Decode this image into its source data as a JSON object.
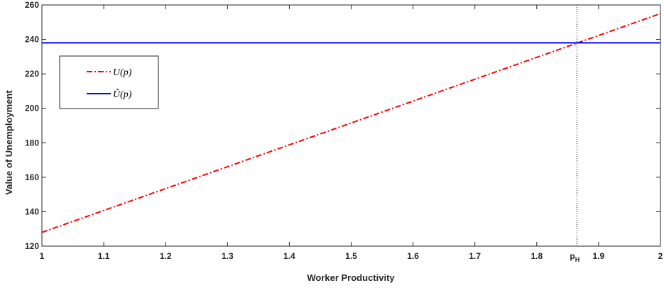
{
  "chart_data": {
    "type": "line",
    "xlabel": "Worker Productivity",
    "ylabel": "Value of Unemployment",
    "xlim": [
      1,
      2
    ],
    "ylim": [
      120,
      260
    ],
    "xticks": [
      1,
      1.1,
      1.2,
      1.3,
      1.4,
      1.5,
      1.6,
      1.7,
      1.8,
      1.9,
      2
    ],
    "xtick_labels": [
      "1",
      "1.1",
      "1.2",
      "1.3",
      "1.4",
      "1.5",
      "1.6",
      "1.7",
      "1.8",
      "1.9",
      "2"
    ],
    "yticks": [
      120,
      140,
      160,
      180,
      200,
      220,
      240,
      260
    ],
    "ytick_labels": [
      "120",
      "140",
      "160",
      "180",
      "200",
      "220",
      "240",
      "260"
    ],
    "grid": false,
    "legend_position": "upper-left",
    "series": [
      {
        "name": "U(p)",
        "color": "#ff0000",
        "style": "dash-dot",
        "x": [
          1,
          2
        ],
        "y": [
          128,
          255
        ]
      },
      {
        "name": "Ũ(p)",
        "color": "#0000ff",
        "style": "solid",
        "x": [
          1,
          2
        ],
        "y": [
          238,
          238
        ]
      }
    ],
    "annotations": [
      {
        "label": "p",
        "subscript": "H",
        "x": 1.865,
        "style": "dotted vertical line",
        "color": "#000000"
      }
    ]
  }
}
